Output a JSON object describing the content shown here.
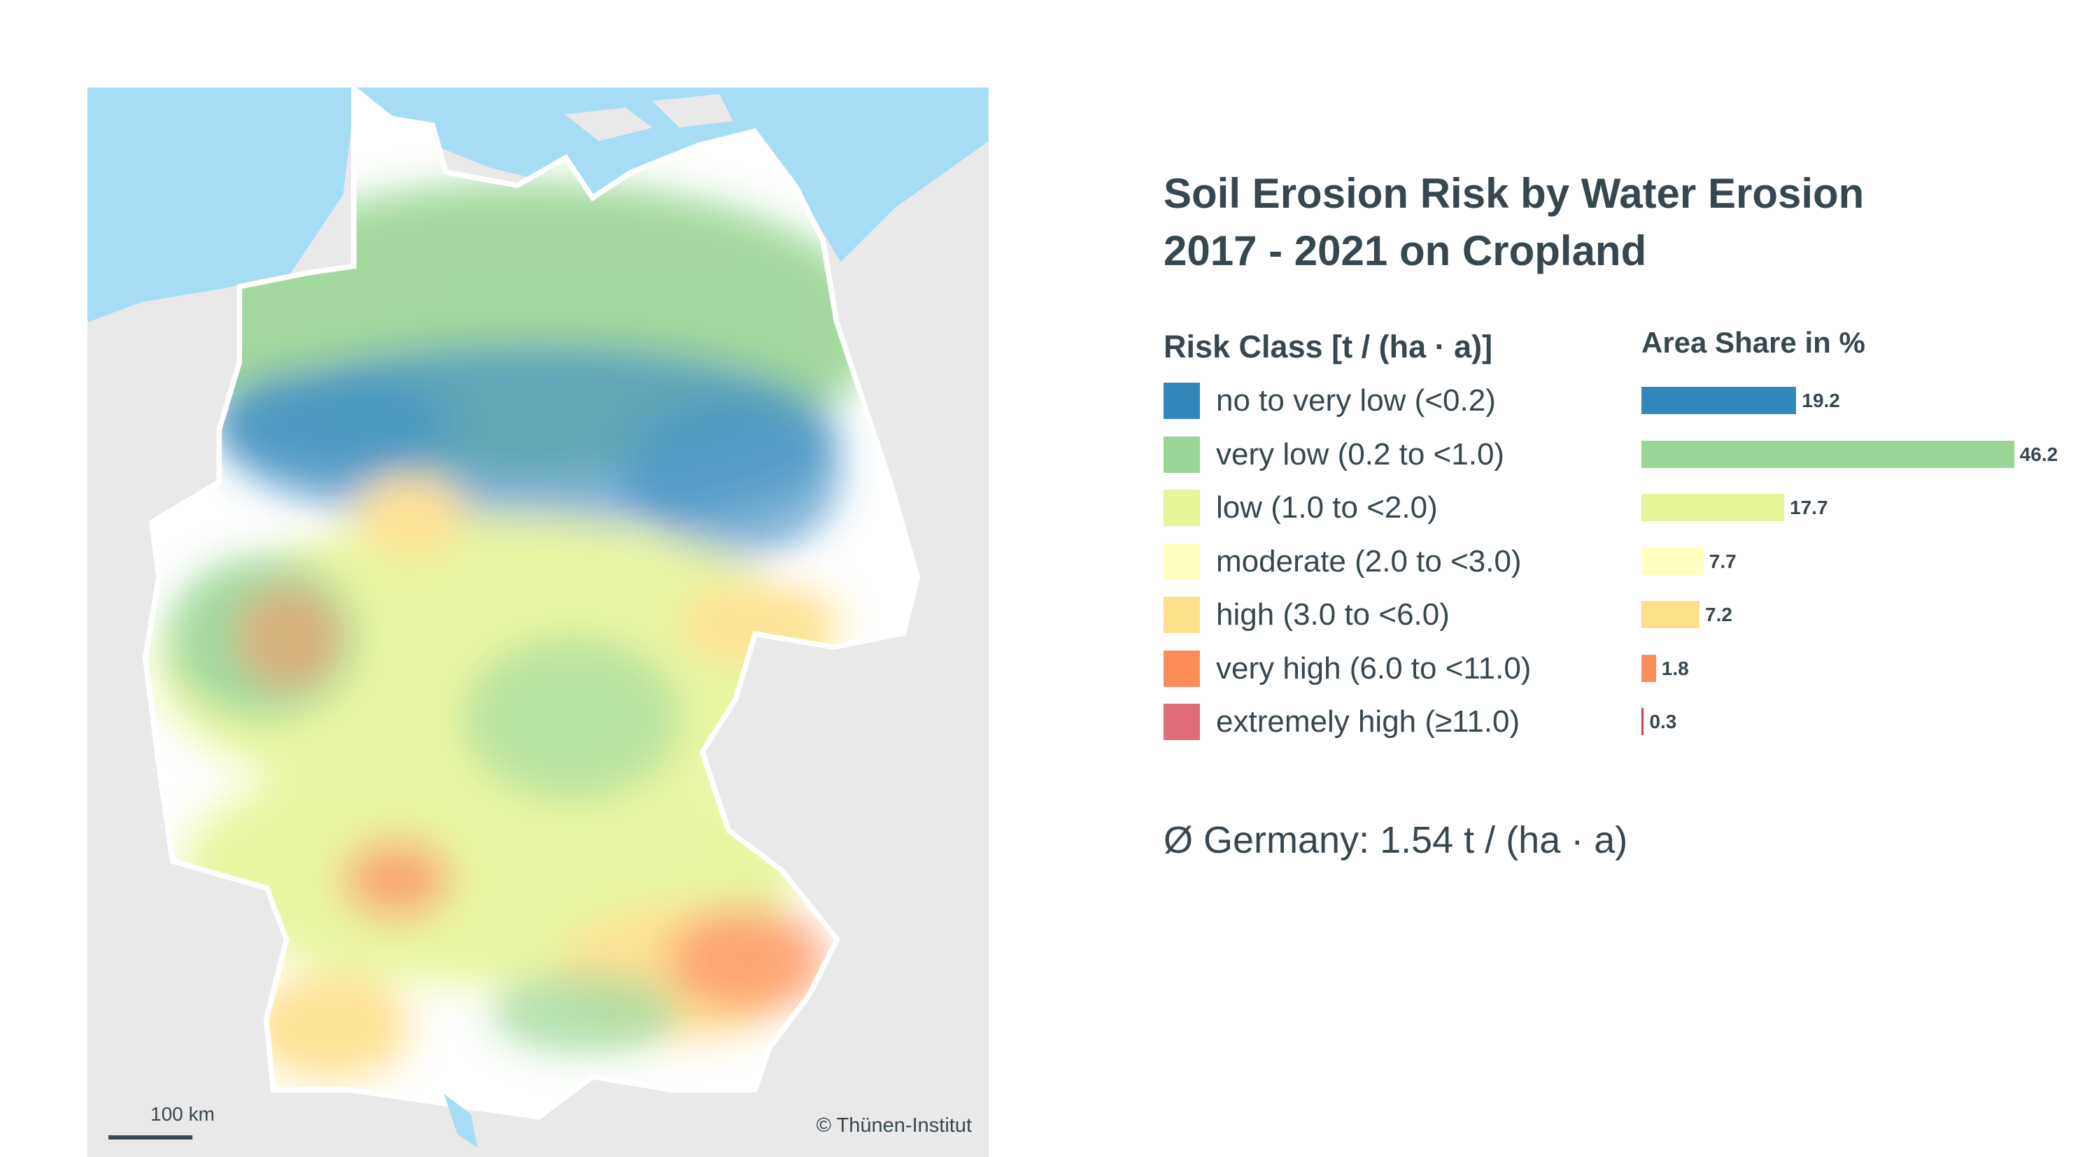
{
  "map": {
    "scale_label": "100 km",
    "copyright": "© Thünen-Institut",
    "colors": {
      "background": "#e9e9e9",
      "water": "#a6dcf4",
      "land": "#ffffff"
    }
  },
  "title": {
    "line1": "Soil Erosion Risk by Water Erosion",
    "line2": "2017 - 2021 on Cropland"
  },
  "legend": {
    "risk_header": "Risk Class [t / (ha · a)]",
    "area_header": "Area Share in %",
    "classes": [
      {
        "label": "no to very low (<0.2)",
        "value": 19.2,
        "value_label": "19.2",
        "color": "#3288bd"
      },
      {
        "label": "very low (0.2 to <1.0)",
        "value": 46.2,
        "value_label": "46.2",
        "color": "#99d594"
      },
      {
        "label": "low (1.0 to <2.0)",
        "value": 17.7,
        "value_label": "17.7",
        "color": "#e6f598"
      },
      {
        "label": "moderate (2.0 to <3.0)",
        "value": 7.7,
        "value_label": "7.7",
        "color": "#ffffbf"
      },
      {
        "label": "high (3.0 to <6.0)",
        "value": 7.2,
        "value_label": "7.2",
        "color": "#fee08b"
      },
      {
        "label": "very high (6.0 to <11.0)",
        "value": 1.8,
        "value_label": "1.8",
        "color": "#fc8d59"
      },
      {
        "label": "extremely high (≥11.0)",
        "value": 0.3,
        "value_label": "0.3",
        "color": "#e06c7a",
        "bar_color": "#d53e4f"
      }
    ]
  },
  "average": "Ø Germany: 1.54 t / (ha · a)"
}
